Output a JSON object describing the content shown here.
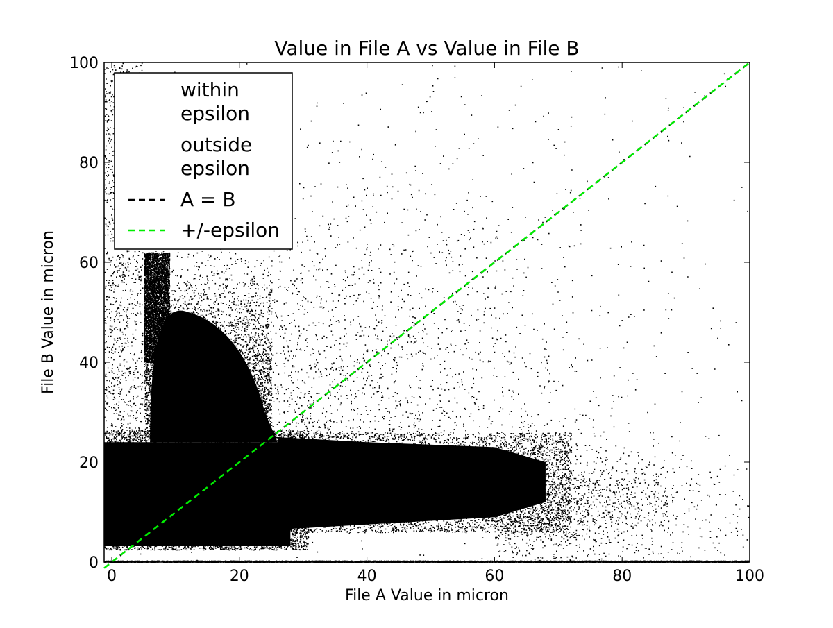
{
  "chart_data": {
    "type": "scatter",
    "title": "Value in File A vs Value in File B",
    "xlabel": "File A Value in micron",
    "ylabel": "File B Value in micron",
    "xlim": [
      -1.2,
      100
    ],
    "ylim": [
      0,
      100
    ],
    "xticks": [
      0,
      20,
      40,
      60,
      80,
      100
    ],
    "yticks": [
      0,
      20,
      40,
      60,
      80,
      100
    ],
    "xtick_labels": [
      "0",
      "20",
      "40",
      "60",
      "80",
      "100"
    ],
    "ytick_labels": [
      "0",
      "20",
      "40",
      "60",
      "80",
      "100"
    ],
    "grid": false,
    "legend_position": "top-left",
    "series": [
      {
        "name": "within epsilon",
        "kind": "points",
        "marker_color": "#000000",
        "description_regions": [
          {
            "x_range": [
              -1.2,
              100
            ],
            "y_range": [
              0,
              0.5
            ]
          }
        ]
      },
      {
        "name": "outside epsilon",
        "kind": "points",
        "marker_color": "#000000",
        "clusters": [
          {
            "x_range": [
              -1.2,
              28
            ],
            "y_range": [
              3,
              24
            ],
            "density": "very high"
          },
          {
            "x_range": [
              5,
              24
            ],
            "y_range": [
              24,
              62
            ],
            "density": "very high"
          },
          {
            "x_range": [
              25,
              70
            ],
            "y_range": [
              6,
              25
            ],
            "density": "high"
          },
          {
            "x_range": [
              60,
              100
            ],
            "y_range": [
              5,
              30
            ],
            "density": "low"
          },
          {
            "x_range": [
              -1.2,
              100
            ],
            "y_range": [
              0,
              100
            ],
            "density": "sparse"
          }
        ]
      },
      {
        "name": "A = B",
        "kind": "line",
        "style": "dashed",
        "color": "#000000",
        "x": [
          0,
          100
        ],
        "y": [
          0,
          100
        ]
      },
      {
        "name": "+/-epsilon",
        "kind": "line",
        "style": "dashed",
        "color": "#00ee00",
        "x": [
          -1.2,
          100
        ],
        "y": [
          -1.2,
          100
        ]
      }
    ],
    "legend": [
      {
        "label_lines": [
          "within",
          "epsilon"
        ],
        "marker": "none",
        "color": "#000000"
      },
      {
        "label_lines": [
          "outside",
          "epsilon"
        ],
        "marker": "none",
        "color": "#000000"
      },
      {
        "label_lines": [
          "A = B"
        ],
        "marker": "dashed-line",
        "color": "#000000"
      },
      {
        "label_lines": [
          "+/-epsilon"
        ],
        "marker": "dashed-line",
        "color": "#00ee00"
      }
    ]
  }
}
